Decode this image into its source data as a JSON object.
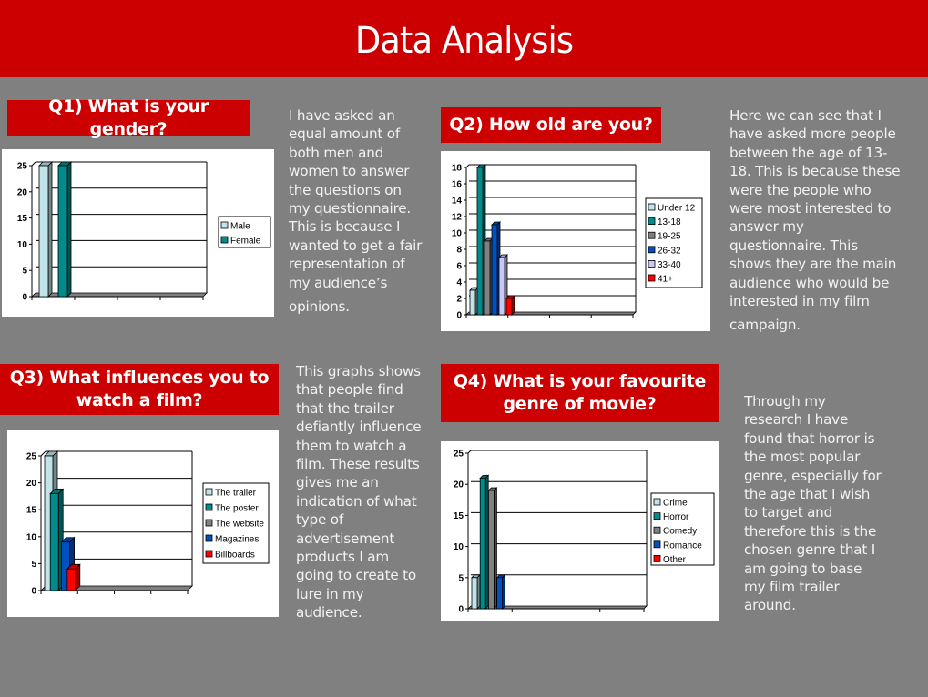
{
  "page": {
    "title": "Data Analysis",
    "colors": {
      "header_bg": "#CC0000",
      "background": "#808080",
      "title_box_bg": "#CC0000",
      "text": "#F2F2F2"
    }
  },
  "sections": [
    {
      "id": "q1",
      "title": "Q1) What is your gender?",
      "paragraph_lines": [
        "I have asked an",
        "equal amount of",
        "both men and",
        "women to answer",
        "the questions on",
        "my questionnaire.",
        "This is because I",
        "wanted to get a fair",
        "representation of",
        "my audience’s",
        "opinions."
      ]
    },
    {
      "id": "q2",
      "title": "Q2) How old are you?",
      "paragraph_lines": [
        "Here we can see that I",
        "have asked more people",
        "between the age of 13-",
        "18. This is because these",
        "were the people who",
        "were most interested to",
        "answer my",
        "questionnaire. This",
        "shows they are the main",
        "audience who would be",
        "interested in my film",
        "campaign."
      ]
    },
    {
      "id": "q3",
      "title_lines": [
        "Q3) What influences you to",
        "watch a film?"
      ],
      "paragraph_lines": [
        "This graphs shows",
        "that people find",
        "that the trailer",
        "defiantly influence",
        "them to watch a",
        "film. These results",
        "gives me an",
        "indication of what",
        "type of",
        "advertisement",
        "products I am",
        "going to create to",
        "lure in my",
        "audience."
      ]
    },
    {
      "id": "q4",
      "title_lines": [
        "Q4) What is your favourite",
        "genre of movie?"
      ],
      "paragraph_lines": [
        "Through my",
        "research I have",
        "found that horror is",
        "the most popular",
        "genre, especially for",
        "the age that I wish",
        "to target and",
        "therefore this is the",
        "chosen genre that I",
        "am going to base",
        "my film trailer",
        "around."
      ]
    }
  ],
  "chart_data": [
    {
      "type": "bar",
      "title": "Q1) What is your gender?",
      "xlabel": "",
      "ylabel": "",
      "ylim": [
        0,
        25
      ],
      "yticks": [
        0,
        5,
        10,
        15,
        20,
        25
      ],
      "grid": true,
      "legend_position": "right",
      "series": [
        {
          "name": "Male",
          "values": [
            25
          ],
          "color": "#C0E4E8"
        },
        {
          "name": "Female",
          "values": [
            25
          ],
          "color": "#008C8C"
        }
      ]
    },
    {
      "type": "bar",
      "title": "Q2) How old are you?",
      "xlabel": "",
      "ylabel": "",
      "ylim": [
        0,
        18
      ],
      "yticks": [
        0,
        2,
        4,
        6,
        8,
        10,
        12,
        14,
        16,
        18
      ],
      "grid": true,
      "legend_position": "right",
      "series": [
        {
          "name": "Under 12",
          "values": [
            3
          ],
          "color": "#C0E4E8"
        },
        {
          "name": "13-18",
          "values": [
            18
          ],
          "color": "#008C8C"
        },
        {
          "name": "19-25",
          "values": [
            9
          ],
          "color": "#808080"
        },
        {
          "name": "26-32",
          "values": [
            11
          ],
          "color": "#0050C0"
        },
        {
          "name": "33-40",
          "values": [
            7
          ],
          "color": "#C8C8F0"
        },
        {
          "name": "41+",
          "values": [
            2
          ],
          "color": "#FF0000"
        }
      ]
    },
    {
      "type": "bar",
      "title": "Q3) What influences you to watch a film?",
      "xlabel": "",
      "ylabel": "",
      "ylim": [
        0,
        25
      ],
      "yticks": [
        0,
        5,
        10,
        15,
        20,
        25
      ],
      "grid": true,
      "legend_position": "right",
      "series": [
        {
          "name": "The trailer",
          "values": [
            25
          ],
          "color": "#C0E4E8"
        },
        {
          "name": "The poster",
          "values": [
            18
          ],
          "color": "#008C8C"
        },
        {
          "name": "The website",
          "values": [
            0
          ],
          "color": "#808080"
        },
        {
          "name": "Magazines",
          "values": [
            9
          ],
          "color": "#0050C0"
        },
        {
          "name": "Billboards",
          "values": [
            4
          ],
          "color": "#FF0000"
        }
      ]
    },
    {
      "type": "bar",
      "title": "Q4) What is your favourite genre of movie?",
      "xlabel": "",
      "ylabel": "",
      "ylim": [
        0,
        25
      ],
      "yticks": [
        0,
        5,
        10,
        15,
        20,
        25
      ],
      "grid": true,
      "legend_position": "right",
      "series": [
        {
          "name": "Crime",
          "values": [
            5
          ],
          "color": "#C0E4E8"
        },
        {
          "name": "Horror",
          "values": [
            21
          ],
          "color": "#008C8C"
        },
        {
          "name": "Comedy",
          "values": [
            19
          ],
          "color": "#808080"
        },
        {
          "name": "Romance",
          "values": [
            5
          ],
          "color": "#0050C0"
        },
        {
          "name": "Other",
          "values": [
            0
          ],
          "color": "#FF0000"
        }
      ]
    }
  ]
}
